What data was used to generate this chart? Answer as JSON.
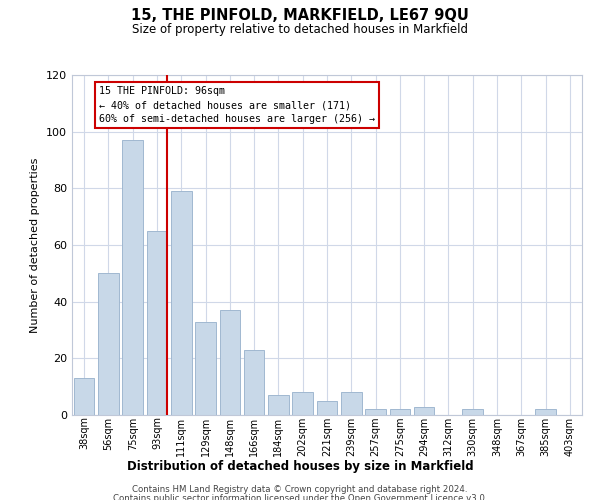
{
  "title": "15, THE PINFOLD, MARKFIELD, LE67 9QU",
  "subtitle": "Size of property relative to detached houses in Markfield",
  "xlabel": "Distribution of detached houses by size in Markfield",
  "ylabel": "Number of detached properties",
  "bar_labels": [
    "38sqm",
    "56sqm",
    "75sqm",
    "93sqm",
    "111sqm",
    "129sqm",
    "148sqm",
    "166sqm",
    "184sqm",
    "202sqm",
    "221sqm",
    "239sqm",
    "257sqm",
    "275sqm",
    "294sqm",
    "312sqm",
    "330sqm",
    "348sqm",
    "367sqm",
    "385sqm",
    "403sqm"
  ],
  "bar_values": [
    13,
    50,
    97,
    65,
    79,
    33,
    37,
    23,
    7,
    8,
    5,
    8,
    2,
    2,
    3,
    0,
    2,
    0,
    0,
    2,
    0
  ],
  "bar_color": "#c8d8e8",
  "bar_edge_color": "#a0b8d0",
  "vline_x_idx": 3,
  "vline_color": "#cc0000",
  "annotation_title": "15 THE PINFOLD: 96sqm",
  "annotation_line1": "← 40% of detached houses are smaller (171)",
  "annotation_line2": "60% of semi-detached houses are larger (256) →",
  "annotation_box_color": "#ffffff",
  "annotation_box_edge": "#cc0000",
  "ylim": [
    0,
    120
  ],
  "yticks": [
    0,
    20,
    40,
    60,
    80,
    100,
    120
  ],
  "footer1": "Contains HM Land Registry data © Crown copyright and database right 2024.",
  "footer2": "Contains public sector information licensed under the Open Government Licence v3.0.",
  "bg_color": "#ffffff",
  "grid_color": "#d0d8e8"
}
